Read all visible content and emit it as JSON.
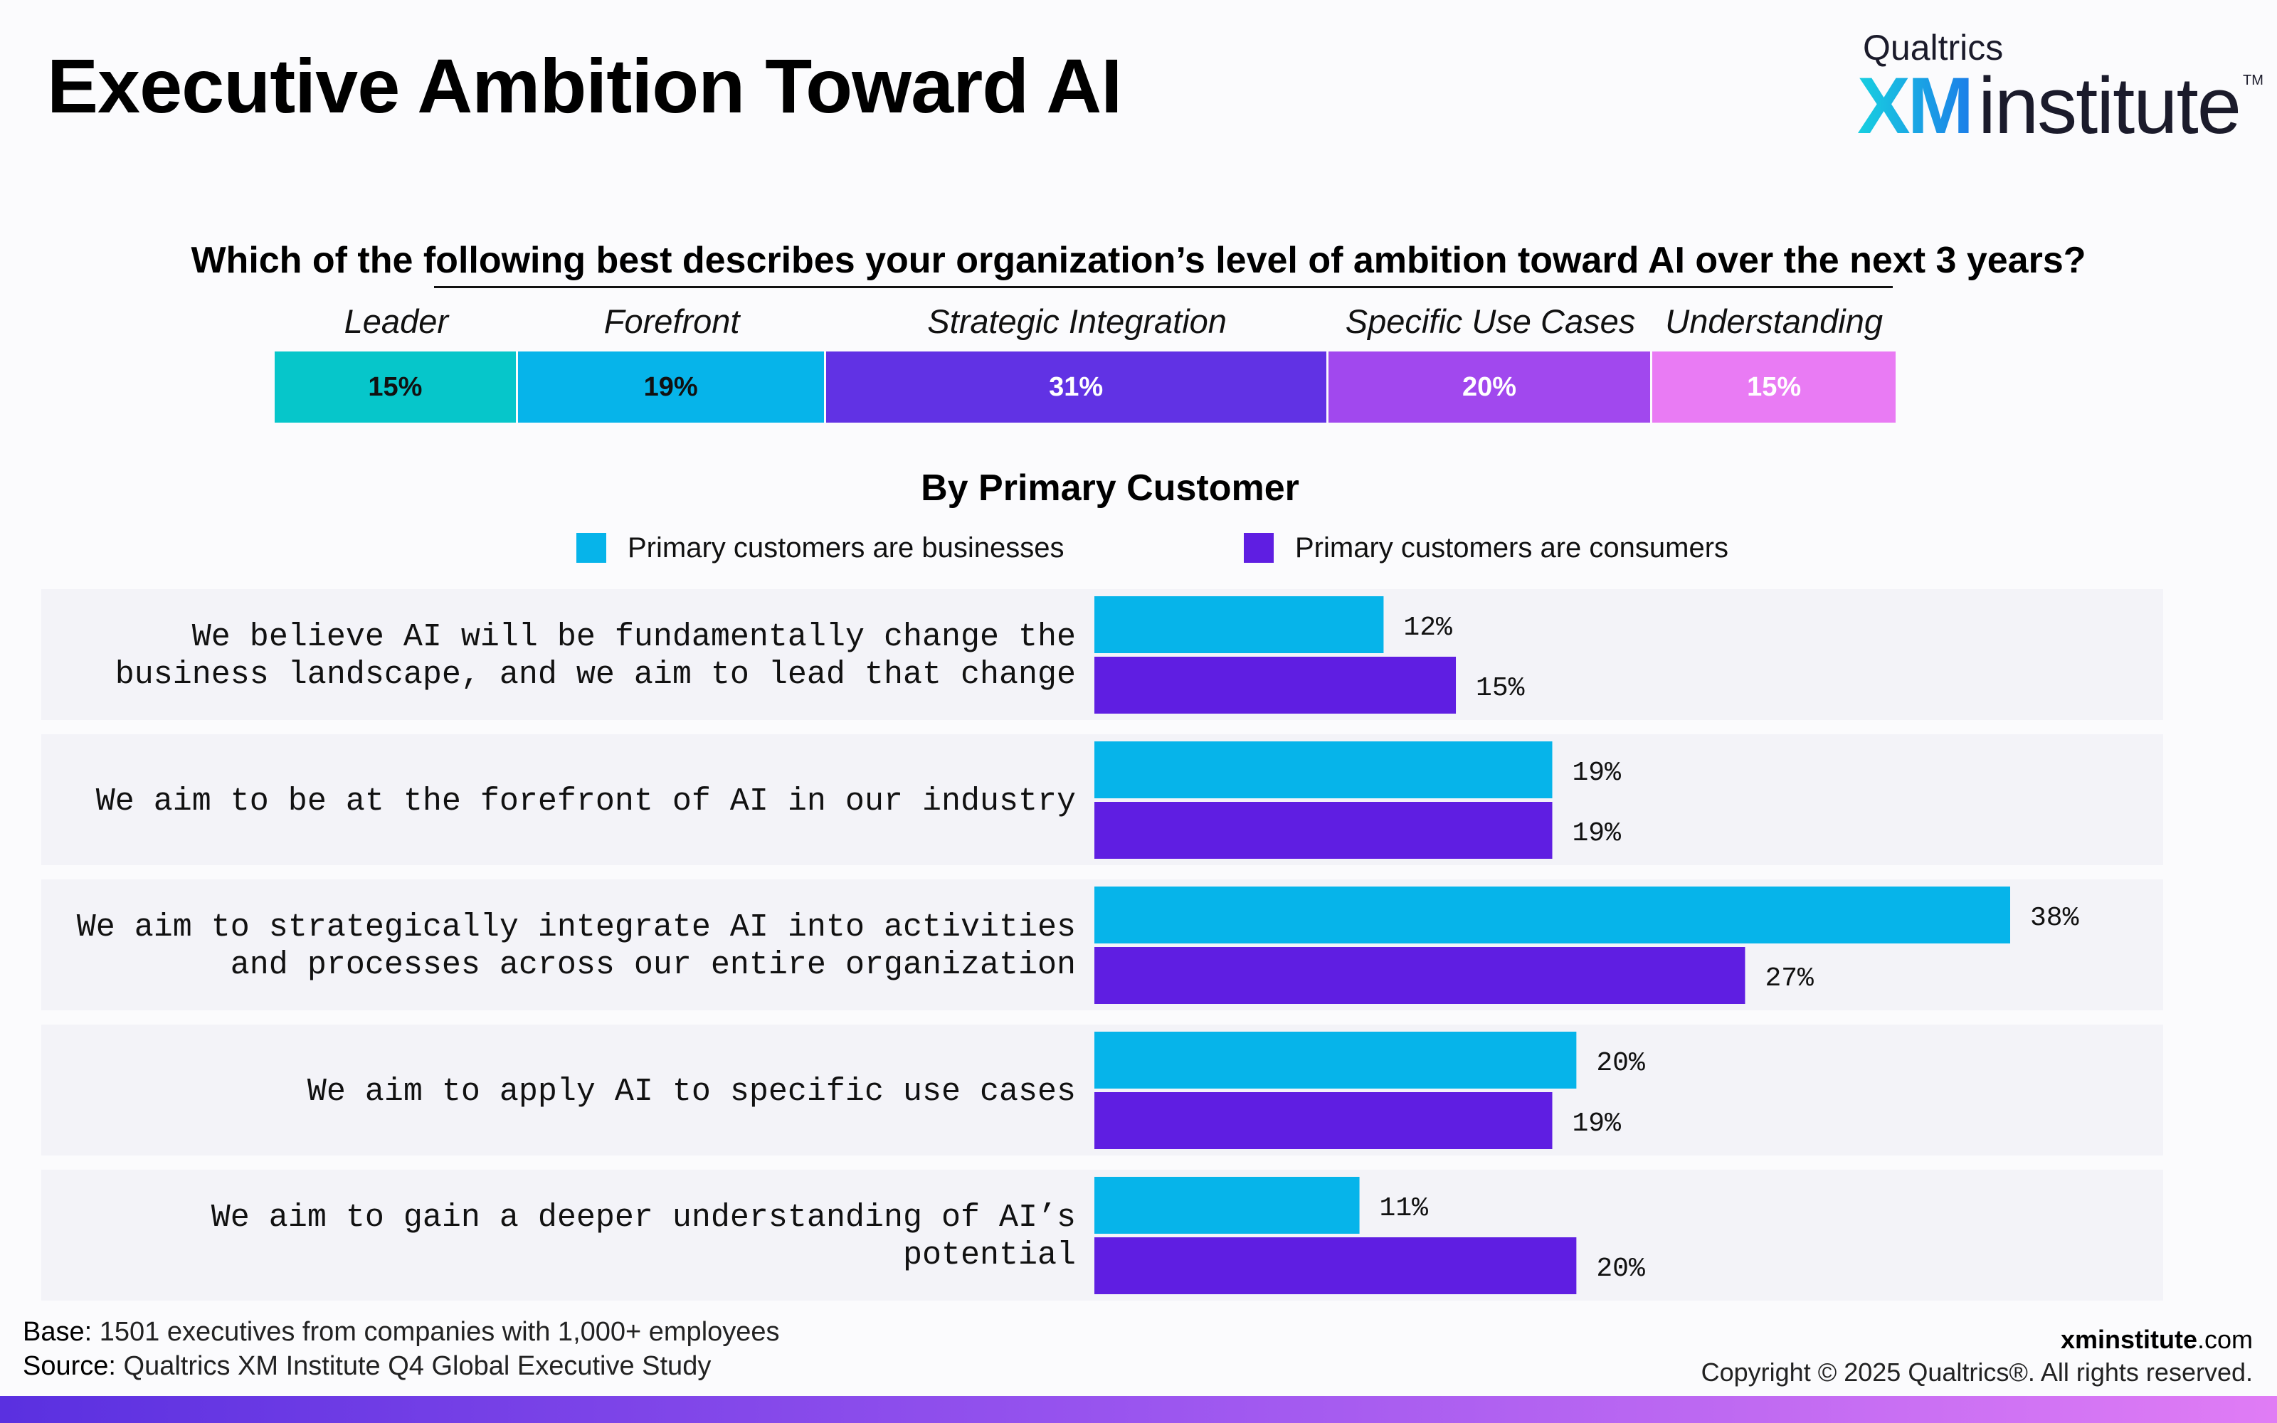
{
  "title": "Executive Ambition Toward AI",
  "logo": {
    "top": "Qualtrics",
    "xm": "XM",
    "institute": "institute",
    "tm": "TM"
  },
  "question": "Which of the following best describes your organization’s level of ambition toward AI over the next 3 years?",
  "overall": {
    "segments": [
      {
        "label": "Leader",
        "value": 15,
        "display": "15%",
        "color": "#06c6ca",
        "text_color": "#111111"
      },
      {
        "label": "Forefront",
        "value": 19,
        "display": "19%",
        "color": "#06b4ea",
        "text_color": "#111111"
      },
      {
        "label": "Strategic Integration",
        "value": 31,
        "display": "31%",
        "color": "#6132e4",
        "text_color": "#ffffff"
      },
      {
        "label": "Specific Use Cases",
        "value": 20,
        "display": "20%",
        "color": "#a148ee",
        "text_color": "#ffffff"
      },
      {
        "label": "Understanding",
        "value": 15,
        "display": "15%",
        "color": "#e97bf4",
        "text_color": "#ffffff"
      }
    ]
  },
  "subtitle": "By Primary Customer",
  "legend": [
    {
      "label": "Primary customers are businesses",
      "color": "#06b4ea"
    },
    {
      "label": "Primary customers are consumers",
      "color": "#5f1ee2"
    }
  ],
  "chart_data": {
    "type": "bar",
    "orientation": "horizontal",
    "categories": [
      [
        "We believe AI will be fundamentally change the",
        "business landscape, and we aim to lead that change"
      ],
      [
        "We aim to be at the forefront of AI in our industry"
      ],
      [
        "We aim to strategically integrate AI into activities",
        "and processes across our entire organization"
      ],
      [
        "We aim to apply AI to specific use cases"
      ],
      [
        "We aim to gain a deeper understanding of AI’s",
        "potential"
      ]
    ],
    "series": [
      {
        "name": "Primary customers are businesses",
        "values": [
          12,
          19,
          38,
          20,
          11
        ],
        "labels": [
          "12%",
          "19%",
          "38%",
          "20%",
          "11%"
        ],
        "color": "#06b4ea"
      },
      {
        "name": "Primary customers are consumers",
        "values": [
          15,
          19,
          27,
          19,
          20
        ],
        "labels": [
          "15%",
          "19%",
          "27%",
          "19%",
          "20%"
        ],
        "color": "#5f1ee2"
      }
    ],
    "xlim": [
      0,
      45
    ],
    "grid": false
  },
  "footer": {
    "base_label": "Base:",
    "base_text": " 1501 executives from companies with 1,000+ employees",
    "source_label": "Source:",
    "source_text": " Qualtrics XM Institute Q4 Global Executive Study",
    "site_bold": "xminstitute",
    "site_tail": ".com",
    "copyright": "Copyright © 2025 Qualtrics®. All rights reserved."
  }
}
